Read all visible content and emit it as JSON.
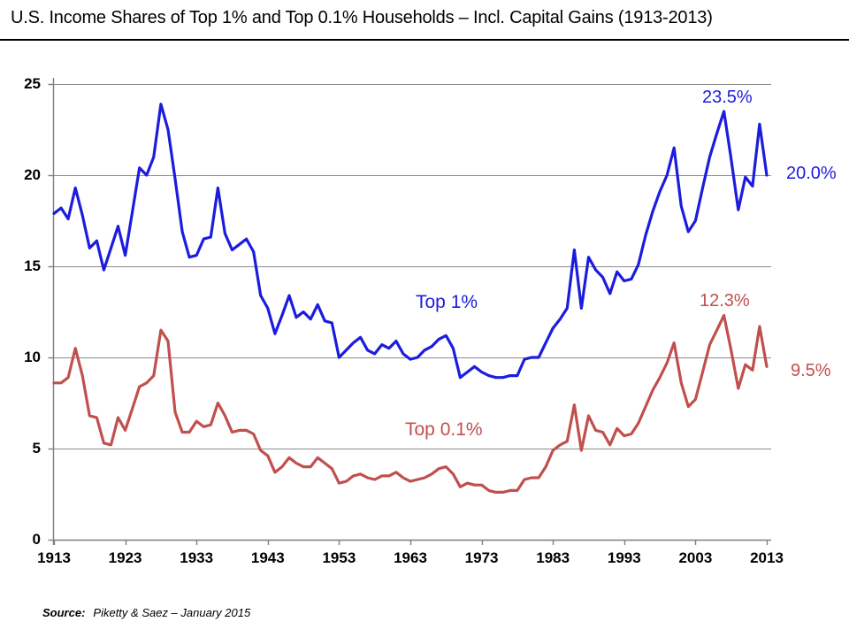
{
  "title": "U.S. Income Shares of Top 1% and Top 0.1% Households – Incl. Capital Gains (1913-2013)",
  "source": {
    "label": "Source:",
    "text": "Piketty & Saez – January 2015"
  },
  "annotations": {
    "top1_peak": "23.5%",
    "top1_end": "20.0%",
    "top01_peak": "12.3%",
    "top01_end": "9.5%",
    "top1_series_label": "Top 1%",
    "top01_series_label": "Top 0.1%"
  },
  "colors": {
    "top1_blue": "#1C1CDE",
    "top01_red": "#C0504D",
    "gridline": "#8C8C8C",
    "axis": "#7F7F7F",
    "text": "#000000"
  },
  "chart_data": {
    "type": "line",
    "title": "U.S. Income Shares of Top 1% and Top 0.1% Households – Incl. Capital Gains (1913-2013)",
    "xlabel": "",
    "ylabel": "",
    "xlim": [
      1913,
      2013
    ],
    "ylim": [
      0,
      25
    ],
    "grid": "horizontal",
    "y_tick_labels": [
      "25",
      "20",
      "15",
      "10",
      "5",
      "0"
    ],
    "y_tick_values": [
      25,
      20,
      15,
      10,
      5,
      0
    ],
    "x_tick_labels": [
      "1913",
      "1923",
      "1933",
      "1943",
      "1953",
      "1963",
      "1973",
      "1983",
      "1993",
      "2003",
      "2013"
    ],
    "x_tick_values": [
      1913,
      1923,
      1933,
      1943,
      1953,
      1963,
      1973,
      1983,
      1993,
      2003,
      2013
    ],
    "years": [
      1913,
      1914,
      1915,
      1916,
      1917,
      1918,
      1919,
      1920,
      1921,
      1922,
      1923,
      1924,
      1925,
      1926,
      1927,
      1928,
      1929,
      1930,
      1931,
      1932,
      1933,
      1934,
      1935,
      1936,
      1937,
      1938,
      1939,
      1940,
      1941,
      1942,
      1943,
      1944,
      1945,
      1946,
      1947,
      1948,
      1949,
      1950,
      1951,
      1952,
      1953,
      1954,
      1955,
      1956,
      1957,
      1958,
      1959,
      1960,
      1961,
      1962,
      1963,
      1964,
      1965,
      1966,
      1967,
      1968,
      1969,
      1970,
      1971,
      1972,
      1973,
      1974,
      1975,
      1976,
      1977,
      1978,
      1979,
      1980,
      1981,
      1982,
      1983,
      1984,
      1985,
      1986,
      1987,
      1988,
      1989,
      1990,
      1991,
      1992,
      1993,
      1994,
      1995,
      1996,
      1997,
      1998,
      1999,
      2000,
      2001,
      2002,
      2003,
      2004,
      2005,
      2006,
      2007,
      2008,
      2009,
      2010,
      2011,
      2012,
      2013
    ],
    "series": [
      {
        "name": "Top 1%",
        "color": "#1C1CDE",
        "values": [
          17.9,
          18.2,
          17.6,
          19.3,
          17.8,
          16.0,
          16.4,
          14.8,
          16.0,
          17.2,
          15.6,
          18.0,
          20.4,
          20.0,
          21.0,
          23.9,
          22.5,
          19.8,
          16.9,
          15.5,
          15.6,
          16.5,
          16.6,
          19.3,
          16.8,
          15.9,
          16.2,
          16.5,
          15.8,
          13.4,
          12.7,
          11.3,
          12.3,
          13.4,
          12.2,
          12.5,
          12.1,
          12.9,
          12.0,
          11.9,
          10.0,
          10.4,
          10.8,
          11.1,
          10.4,
          10.2,
          10.7,
          10.5,
          10.9,
          10.2,
          9.9,
          10.0,
          10.4,
          10.6,
          11.0,
          11.2,
          10.5,
          8.9,
          9.2,
          9.5,
          9.2,
          9.0,
          8.9,
          8.9,
          9.0,
          9.0,
          9.9,
          10.0,
          10.0,
          10.8,
          11.6,
          12.1,
          12.7,
          15.9,
          12.7,
          15.5,
          14.8,
          14.4,
          13.5,
          14.7,
          14.2,
          14.3,
          15.1,
          16.7,
          18.0,
          19.1,
          20.0,
          21.5,
          18.3,
          16.9,
          17.5,
          19.3,
          21.0,
          22.3,
          23.5,
          20.9,
          18.1,
          19.9,
          19.4,
          22.8,
          20.0
        ]
      },
      {
        "name": "Top 0.1%",
        "color": "#C0504D",
        "values": [
          8.6,
          8.6,
          8.9,
          10.5,
          9.0,
          6.8,
          6.7,
          5.3,
          5.2,
          6.7,
          6.0,
          7.2,
          8.4,
          8.6,
          9.0,
          11.5,
          10.9,
          7.0,
          5.9,
          5.9,
          6.5,
          6.2,
          6.3,
          7.5,
          6.8,
          5.9,
          6.0,
          6.0,
          5.8,
          4.9,
          4.6,
          3.7,
          4.0,
          4.5,
          4.2,
          4.0,
          4.0,
          4.5,
          4.2,
          3.9,
          3.1,
          3.2,
          3.5,
          3.6,
          3.4,
          3.3,
          3.5,
          3.5,
          3.7,
          3.4,
          3.2,
          3.3,
          3.4,
          3.6,
          3.9,
          4.0,
          3.6,
          2.9,
          3.1,
          3.0,
          3.0,
          2.7,
          2.6,
          2.6,
          2.7,
          2.7,
          3.3,
          3.4,
          3.4,
          4.0,
          4.9,
          5.2,
          5.4,
          7.4,
          4.9,
          6.8,
          6.0,
          5.9,
          5.2,
          6.1,
          5.7,
          5.8,
          6.4,
          7.3,
          8.2,
          8.9,
          9.7,
          10.8,
          8.6,
          7.3,
          7.7,
          9.2,
          10.7,
          11.5,
          12.3,
          10.4,
          8.3,
          9.6,
          9.3,
          11.7,
          9.5
        ]
      }
    ],
    "annotations": [
      {
        "text": "23.5%",
        "series": "Top 1%",
        "year": 2007,
        "value": 23.5
      },
      {
        "text": "20.0%",
        "series": "Top 1%",
        "year": 2013,
        "value": 20.0
      },
      {
        "text": "12.3%",
        "series": "Top 0.1%",
        "year": 2007,
        "value": 12.3
      },
      {
        "text": "9.5%",
        "series": "Top 0.1%",
        "year": 2013,
        "value": 9.5
      }
    ],
    "legend_position": "inline-labels"
  }
}
